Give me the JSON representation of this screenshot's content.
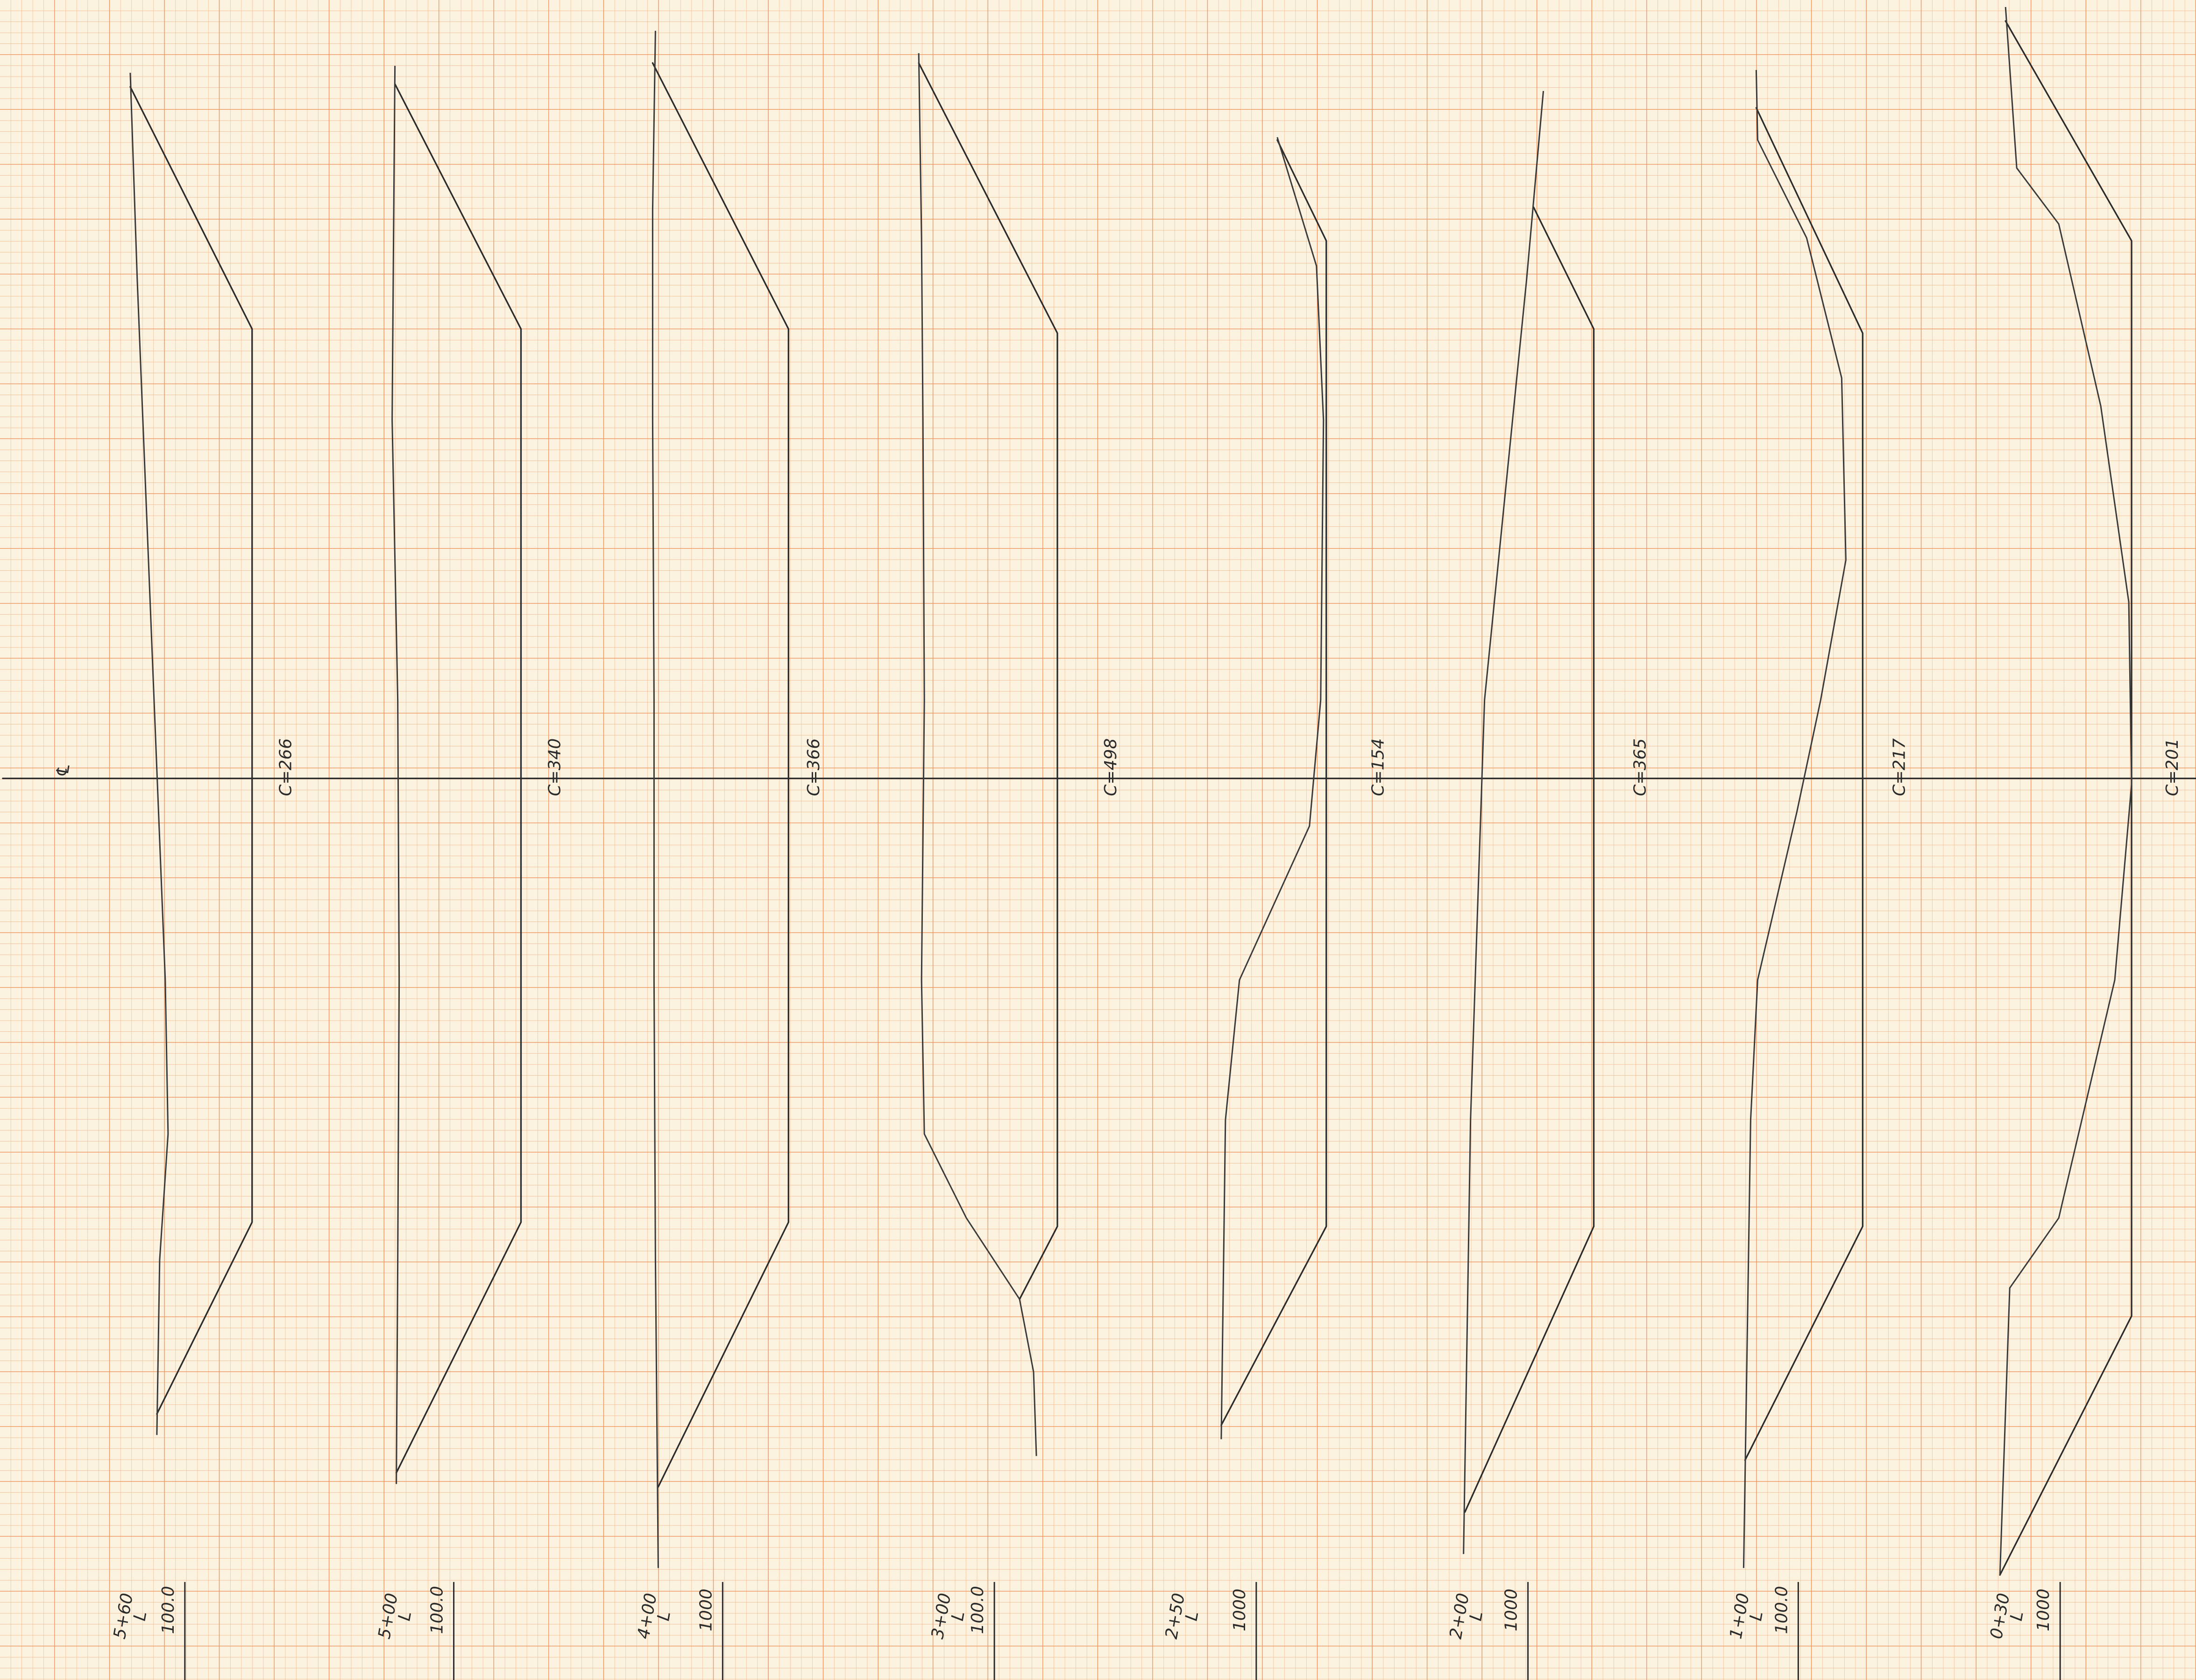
{
  "centerline_symbol": "℄",
  "sections": [
    {
      "station": "5+60",
      "mark": "L",
      "datum": "100.0",
      "cut": "C=266"
    },
    {
      "station": "5+00",
      "mark": "L",
      "datum": "100.0",
      "cut": "C=340"
    },
    {
      "station": "4+00",
      "mark": "L",
      "datum": "1000",
      "cut": "C=366"
    },
    {
      "station": "3+00",
      "mark": "L",
      "datum": "100.0",
      "cut": "C=498"
    },
    {
      "station": "2+50",
      "mark": "L",
      "datum": "1000",
      "cut": "C=154"
    },
    {
      "station": "2+00",
      "mark": "L",
      "datum": "1000",
      "cut": "C=365"
    },
    {
      "station": "1+00",
      "mark": "L",
      "datum": "100.0",
      "cut": "C=217"
    },
    {
      "station": "0+30",
      "mark": "L",
      "datum": "1000",
      "cut": "C=201"
    }
  ]
}
